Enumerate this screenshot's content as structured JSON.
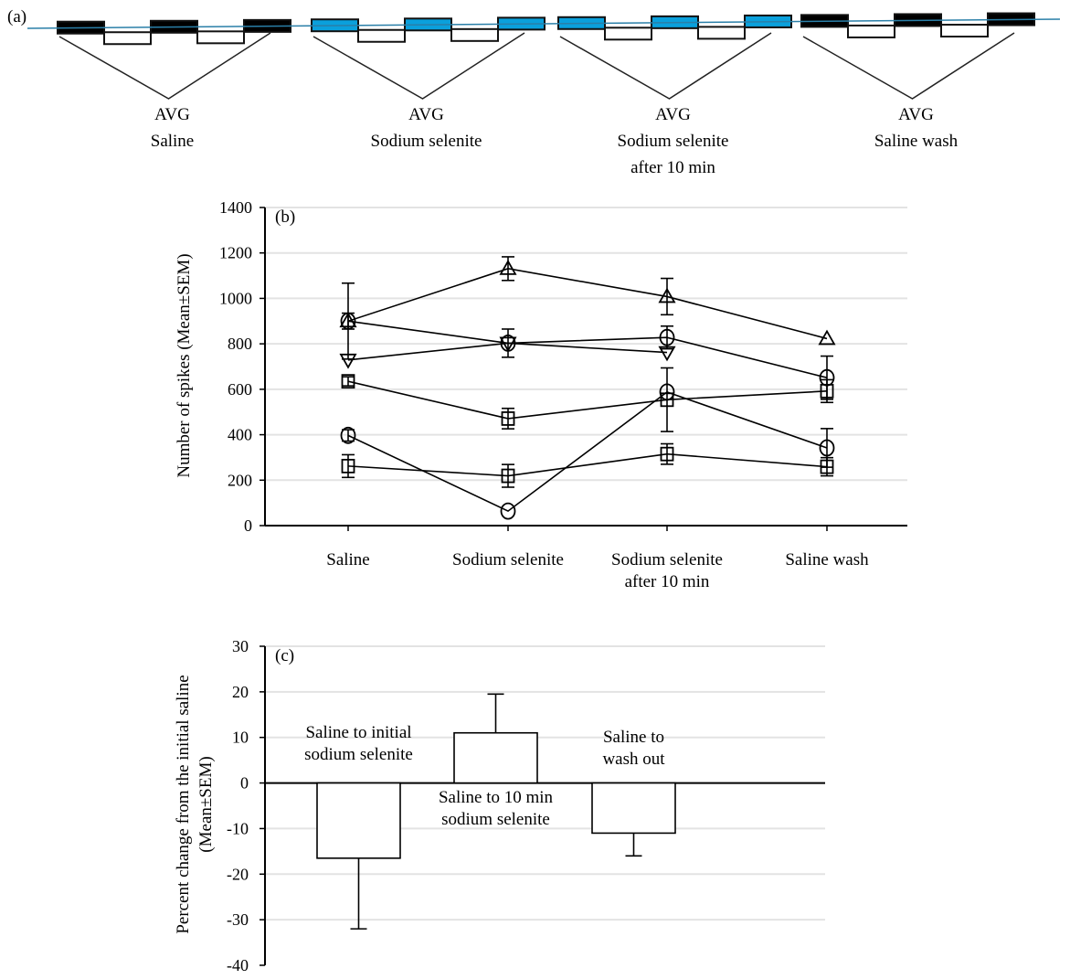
{
  "panel_a": {
    "label": "(a)",
    "groups": [
      {
        "avg": "AVG",
        "name_lines": [
          "Saline"
        ],
        "color": "#000000"
      },
      {
        "avg": "AVG",
        "name_lines": [
          "Sodium selenite"
        ],
        "color": "#0aa0dc"
      },
      {
        "avg": "AVG",
        "name_lines": [
          "Sodium selenite",
          "after 10 min"
        ],
        "color": "#0aa0dc"
      },
      {
        "avg": "AVG",
        "name_lines": [
          "Saline wash"
        ],
        "color": "#000000"
      }
    ],
    "trace_color": "#2a7fa8"
  },
  "chart_data": [
    {
      "type": "line",
      "panel_label": "(b)",
      "ylabel": "Number of spikes (Mean±SEM)",
      "xlabel": "",
      "categories": [
        [
          "Saline"
        ],
        [
          "Sodium selenite"
        ],
        [
          "Sodium selenite",
          "after 10 min"
        ],
        [
          "Saline wash"
        ]
      ],
      "ylim": [
        0,
        1400
      ],
      "yticks": [
        0,
        200,
        400,
        600,
        800,
        1000,
        1200,
        1400
      ],
      "grid": true,
      "series": [
        {
          "marker": "triangle-up",
          "values": [
            900,
            1131,
            1008,
            823
          ],
          "errors": [
            35,
            52,
            80,
            0
          ]
        },
        {
          "marker": "circle",
          "values": [
            900,
            803,
            828,
            651
          ],
          "errors": [
            167,
            0,
            50,
            95
          ]
        },
        {
          "marker": "triangle-down",
          "values": [
            729,
            803,
            762,
            null
          ],
          "errors": [
            0,
            62,
            0,
            null
          ]
        },
        {
          "marker": "square",
          "values": [
            635,
            471,
            554,
            592
          ],
          "errors": [
            20,
            45,
            140,
            50
          ]
        },
        {
          "marker": "circle",
          "values": [
            397,
            64,
            588,
            342
          ],
          "errors": [
            25,
            0,
            0,
            85
          ]
        },
        {
          "marker": "square",
          "values": [
            262,
            219,
            315,
            259
          ],
          "errors": [
            50,
            50,
            45,
            40
          ]
        }
      ]
    },
    {
      "type": "bar",
      "panel_label": "(c)",
      "ylabel_lines": [
        "Percent change from the initial saline",
        "(Mean±SEM)"
      ],
      "xlabel": "",
      "categories": [
        [
          "Saline to initial",
          "sodium selenite"
        ],
        [
          "Saline to 10 min",
          "sodium selenite"
        ],
        [
          "Saline to",
          "wash out"
        ]
      ],
      "values": [
        -16.5,
        11,
        -11
      ],
      "errors": [
        15.5,
        8.5,
        5
      ],
      "ylim": [
        -40,
        30
      ],
      "yticks": [
        -40,
        -30,
        -20,
        -10,
        0,
        10,
        20,
        30
      ],
      "grid": true
    }
  ]
}
